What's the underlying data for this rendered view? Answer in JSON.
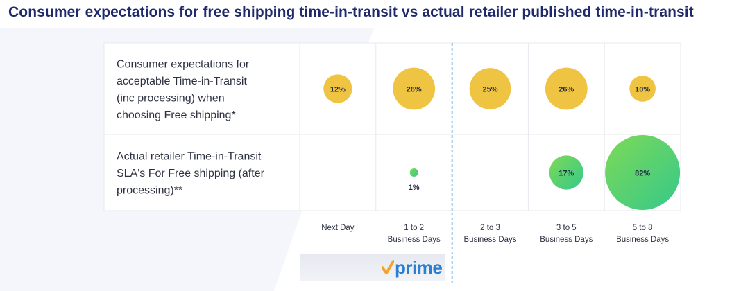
{
  "page": {
    "title": "Consumer expectations for free shipping time-in-transit vs actual retailer published time-in-transit"
  },
  "chart_data": {
    "type": "bubble",
    "categories": [
      [
        "Next Day"
      ],
      [
        "1 to 2",
        "Business Days"
      ],
      [
        "2 to 3",
        "Business Days"
      ],
      [
        "3 to 5",
        "Business Days"
      ],
      [
        "5 to 8",
        "Business Days"
      ]
    ],
    "series": [
      {
        "label_lines": [
          "Consumer expectations for",
          "acceptable Time-in-Transit",
          "(inc processing) when",
          "choosing Free shipping*"
        ],
        "color": "#efc443",
        "values": [
          12,
          26,
          25,
          26,
          10
        ]
      },
      {
        "label_lines": [
          "Actual retailer Time-in-Transit",
          "SLA's For Free shipping (after",
          "processing)**"
        ],
        "color_start": "#7ed957",
        "color_end": "#35c98a",
        "values": [
          null,
          1,
          null,
          17,
          82
        ]
      }
    ],
    "value_suffix": "%",
    "divider_after_category": 1
  },
  "logo": {
    "text": "prime",
    "check_color": "#f4a42a",
    "text_color": "#2a7fd0"
  }
}
